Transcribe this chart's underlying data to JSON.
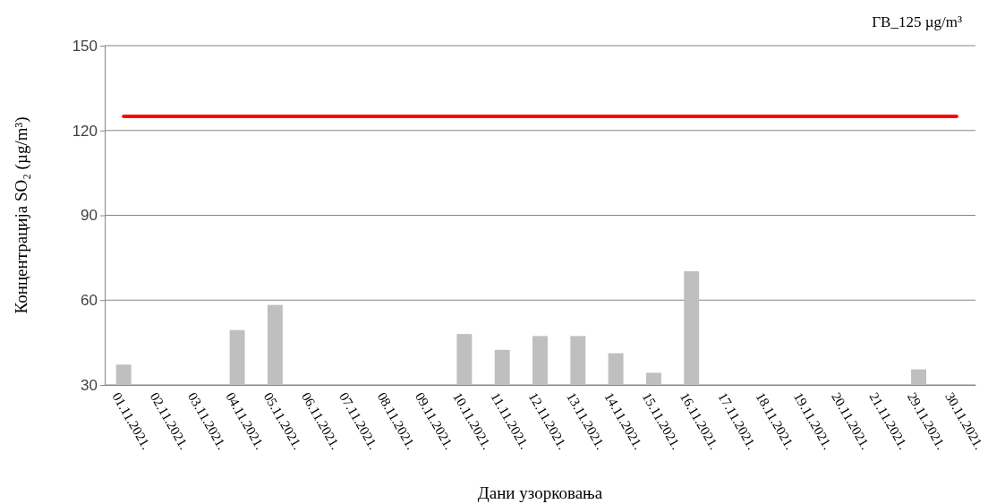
{
  "chart_data": {
    "type": "bar",
    "xlabel": "Дани узорковања",
    "ylabel": "Концентрација SO₂ (µg/m³)",
    "categories": [
      "01.11.2021.",
      "02.11.2021.",
      "03.11.2021.",
      "04.11.2021.",
      "05.11.2021.",
      "06.11.2021.",
      "07.11.2021.",
      "08.11.2021.",
      "09.11.2021.",
      "10.11.2021.",
      "11.11.2021.",
      "12.11.2021.",
      "13.11.2021.",
      "14.11.2021.",
      "15.11.2021.",
      "16.11.2021.",
      "17.11.2021.",
      "18.11.2021.",
      "19.11.2021.",
      "20.11.2021.",
      "21.11.2021.",
      "29.11.2021.",
      "30.11.2021."
    ],
    "values": [
      37.2,
      30,
      null,
      49.4,
      58.3,
      30,
      30,
      30,
      30,
      48,
      42.4,
      47.3,
      47.3,
      41.2,
      34.3,
      70.2,
      30,
      30,
      30,
      30,
      30,
      35.5,
      30
    ],
    "color": "#bfbfbf",
    "ylim": [
      30,
      150
    ],
    "yticks": [
      30,
      60,
      90,
      120,
      150
    ],
    "grid": "y",
    "annotations": [
      "ГВ_125 µg/m³"
    ],
    "ref_lines": [
      {
        "axis": "y",
        "value": 125,
        "color": "#ff0000"
      }
    ]
  }
}
